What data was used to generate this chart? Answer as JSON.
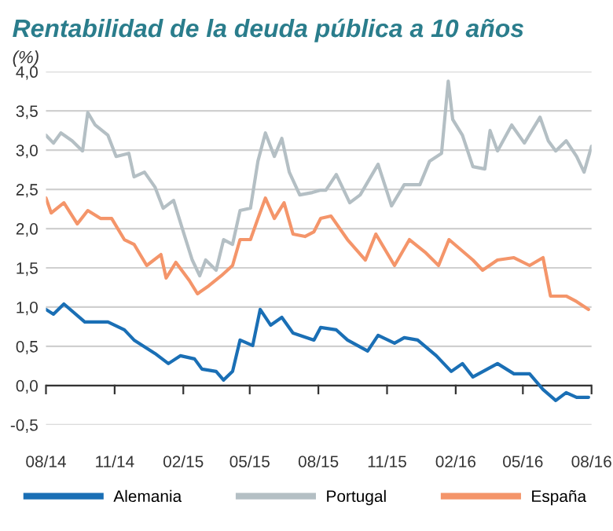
{
  "chart_data": {
    "type": "line",
    "title": "Rentabilidad de la deuda pública a 10 años",
    "ylabel": "(%)",
    "xlim": [
      "2014-08-01",
      "2016-08-01"
    ],
    "ylim": [
      -0.5,
      4.0
    ],
    "xticks": [
      {
        "value": "2014-08-01",
        "label": "08/14"
      },
      {
        "value": "2014-11-01",
        "label": "11/14"
      },
      {
        "value": "2015-02-01",
        "label": "02/15"
      },
      {
        "value": "2015-05-01",
        "label": "05/15"
      },
      {
        "value": "2015-08-01",
        "label": "08/15"
      },
      {
        "value": "2015-11-01",
        "label": "11/15"
      },
      {
        "value": "2016-02-01",
        "label": "02/16"
      },
      {
        "value": "2016-05-01",
        "label": "05/16"
      },
      {
        "value": "2016-08-01",
        "label": "08/16"
      }
    ],
    "yticks": [
      {
        "value": -0.5,
        "label": "-0,5"
      },
      {
        "value": 0,
        "label": "0,0"
      },
      {
        "value": 0.5,
        "label": "0,5"
      },
      {
        "value": 1,
        "label": "1,0"
      },
      {
        "value": 1.5,
        "label": "1,5"
      },
      {
        "value": 2,
        "label": "2,0"
      },
      {
        "value": 2.5,
        "label": "2,5"
      },
      {
        "value": 3,
        "label": "3,0"
      },
      {
        "value": 3.5,
        "label": "3,5"
      },
      {
        "value": 4,
        "label": "4,0"
      }
    ],
    "grid": "y",
    "legend": "bottom",
    "marker": "none",
    "line_style": "solid",
    "series": [
      {
        "name": "Alemania",
        "color": "#1a6fb5",
        "x": [
          "2014-08-01",
          "2014-08-11",
          "2014-08-25",
          "2014-09-22",
          "2014-10-23",
          "2014-11-14",
          "2014-11-27",
          "2014-12-25",
          "2015-01-12",
          "2015-01-28",
          "2015-02-16",
          "2015-02-26",
          "2015-03-17",
          "2015-03-27",
          "2015-04-08",
          "2015-04-18",
          "2015-05-05",
          "2015-05-15",
          "2015-05-29",
          "2015-06-13",
          "2015-06-28",
          "2015-07-26",
          "2015-08-04",
          "2015-08-25",
          "2015-09-09",
          "2015-10-06",
          "2015-10-20",
          "2015-11-11",
          "2015-11-24",
          "2015-12-12",
          "2016-01-06",
          "2016-01-26",
          "2016-02-10",
          "2016-02-24",
          "2016-03-28",
          "2016-04-19",
          "2016-05-10",
          "2016-05-28",
          "2016-06-14",
          "2016-06-28",
          "2016-07-12",
          "2016-07-28"
        ],
        "values": [
          0.97,
          0.91,
          1.04,
          0.81,
          0.81,
          0.71,
          0.58,
          0.41,
          0.28,
          0.38,
          0.34,
          0.21,
          0.18,
          0.07,
          0.18,
          0.58,
          0.51,
          0.97,
          0.77,
          0.87,
          0.67,
          0.58,
          0.74,
          0.71,
          0.58,
          0.44,
          0.64,
          0.54,
          0.61,
          0.58,
          0.38,
          0.18,
          0.28,
          0.11,
          0.28,
          0.15,
          0.15,
          -0.05,
          -0.19,
          -0.09,
          -0.15,
          -0.15
        ]
      },
      {
        "name": "Portugal",
        "color": "#b4bfc4",
        "x": [
          "2014-08-01",
          "2014-08-11",
          "2014-08-21",
          "2014-09-05",
          "2014-09-19",
          "2014-09-26",
          "2014-10-06",
          "2014-10-23",
          "2014-11-03",
          "2014-11-20",
          "2014-11-27",
          "2014-12-11",
          "2014-12-25",
          "2015-01-05",
          "2015-01-19",
          "2015-02-02",
          "2015-02-13",
          "2015-02-23",
          "2015-03-03",
          "2015-03-17",
          "2015-03-27",
          "2015-04-08",
          "2015-04-18",
          "2015-05-02",
          "2015-05-12",
          "2015-05-22",
          "2015-06-03",
          "2015-06-13",
          "2015-06-23",
          "2015-07-07",
          "2015-07-24",
          "2015-08-04",
          "2015-08-11",
          "2015-08-25",
          "2015-09-12",
          "2015-09-26",
          "2015-10-20",
          "2015-11-07",
          "2015-11-24",
          "2015-12-15",
          "2015-12-28",
          "2016-01-13",
          "2016-01-22",
          "2016-01-28",
          "2016-02-10",
          "2016-02-24",
          "2016-03-11",
          "2016-03-18",
          "2016-03-28",
          "2016-04-16",
          "2016-05-03",
          "2016-05-24",
          "2016-06-04",
          "2016-06-14",
          "2016-06-28",
          "2016-07-12",
          "2016-07-22",
          "2016-08-01"
        ],
        "values": [
          3.19,
          3.09,
          3.22,
          3.12,
          2.99,
          3.48,
          3.32,
          3.19,
          2.92,
          2.96,
          2.66,
          2.72,
          2.53,
          2.26,
          2.36,
          1.93,
          1.6,
          1.4,
          1.6,
          1.47,
          1.86,
          1.8,
          2.23,
          2.26,
          2.86,
          3.22,
          2.92,
          3.15,
          2.72,
          2.43,
          2.46,
          2.49,
          2.49,
          2.69,
          2.33,
          2.43,
          2.82,
          2.29,
          2.56,
          2.56,
          2.86,
          2.96,
          3.88,
          3.39,
          3.19,
          2.79,
          2.76,
          3.25,
          2.99,
          3.32,
          3.09,
          3.42,
          3.12,
          2.99,
          3.12,
          2.92,
          2.72,
          3.05
        ]
      },
      {
        "name": "España",
        "color": "#f4956a",
        "x": [
          "2014-08-01",
          "2014-08-08",
          "2014-08-25",
          "2014-09-12",
          "2014-09-26",
          "2014-10-13",
          "2014-10-28",
          "2014-11-14",
          "2014-11-27",
          "2014-12-14",
          "2015-01-02",
          "2015-01-09",
          "2015-01-22",
          "2015-02-09",
          "2015-02-20",
          "2015-03-07",
          "2015-03-24",
          "2015-04-08",
          "2015-04-18",
          "2015-05-02",
          "2015-05-12",
          "2015-05-22",
          "2015-06-03",
          "2015-06-16",
          "2015-06-28",
          "2015-07-14",
          "2015-07-26",
          "2015-08-04",
          "2015-08-18",
          "2015-09-09",
          "2015-10-03",
          "2015-10-17",
          "2015-11-11",
          "2015-12-01",
          "2015-12-22",
          "2016-01-09",
          "2016-01-23",
          "2016-02-24",
          "2016-03-08",
          "2016-03-28",
          "2016-04-19",
          "2016-05-10",
          "2016-05-28",
          "2016-06-07",
          "2016-06-28",
          "2016-07-12",
          "2016-07-28"
        ],
        "values": [
          2.39,
          2.2,
          2.33,
          2.06,
          2.23,
          2.13,
          2.13,
          1.86,
          1.8,
          1.53,
          1.67,
          1.37,
          1.57,
          1.34,
          1.17,
          1.27,
          1.4,
          1.53,
          1.86,
          1.86,
          2.13,
          2.39,
          2.13,
          2.33,
          1.93,
          1.9,
          1.96,
          2.13,
          2.16,
          1.86,
          1.6,
          1.93,
          1.53,
          1.86,
          1.7,
          1.53,
          1.86,
          1.6,
          1.47,
          1.6,
          1.63,
          1.53,
          1.63,
          1.14,
          1.14,
          1.07,
          0.97
        ]
      }
    ]
  }
}
